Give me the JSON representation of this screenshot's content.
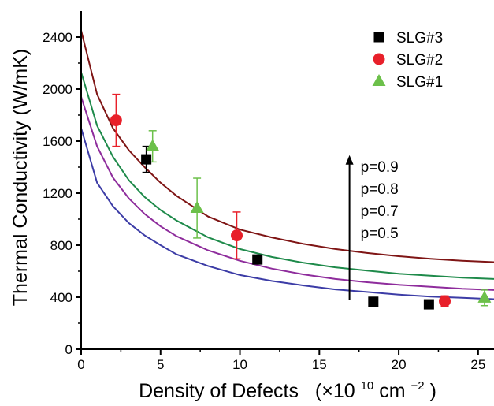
{
  "chart_data": {
    "type": "scatter",
    "xlabel": "Density of Defects",
    "xlabel_unit_prefix": "(×10",
    "xlabel_unit_exp": "10",
    "xlabel_unit_mid": " cm",
    "xlabel_unit_exp2": "−2",
    "xlabel_unit_suffix": ")",
    "ylabel": "Thermal Conductivity (W/mK)",
    "xlim": [
      0,
      26
    ],
    "ylim": [
      0,
      2600
    ],
    "xticks": [
      0,
      5,
      10,
      15,
      20,
      25
    ],
    "yticks": [
      0,
      400,
      800,
      1200,
      1600,
      2000,
      2400
    ],
    "grid": false,
    "legend_position": "top-right",
    "series": [
      {
        "name": "SLG#3",
        "marker": "square",
        "color": "#000000",
        "points": [
          {
            "x": 4.1,
            "y": 1460,
            "err": 100
          },
          {
            "x": 11.1,
            "y": 690,
            "err": 0
          },
          {
            "x": 18.4,
            "y": 365,
            "err": 0
          },
          {
            "x": 21.9,
            "y": 345,
            "err": 0
          }
        ]
      },
      {
        "name": "SLG#2",
        "marker": "circle",
        "color": "#e8202a",
        "points": [
          {
            "x": 2.2,
            "y": 1760,
            "err": 200
          },
          {
            "x": 9.8,
            "y": 875,
            "err": 180
          },
          {
            "x": 22.9,
            "y": 370,
            "err": 40
          }
        ]
      },
      {
        "name": "SLG#1",
        "marker": "triangle",
        "color": "#6cc04a",
        "points": [
          {
            "x": 4.5,
            "y": 1560,
            "err": 120
          },
          {
            "x": 7.3,
            "y": 1085,
            "err": 230
          },
          {
            "x": 25.4,
            "y": 395,
            "err": 60
          }
        ]
      }
    ],
    "curves": [
      {
        "label": "p=0.9",
        "color": "#7f1515",
        "x": [
          0,
          1,
          2,
          3,
          4,
          5,
          6,
          8,
          10,
          12,
          14,
          16,
          18,
          20,
          22,
          24,
          26
        ],
        "y": [
          2450,
          1960,
          1700,
          1530,
          1400,
          1280,
          1180,
          1020,
          920,
          860,
          810,
          770,
          740,
          715,
          695,
          680,
          670
        ]
      },
      {
        "label": "p=0.8",
        "color": "#1e8a4a",
        "x": [
          0,
          1,
          2,
          3,
          4,
          5,
          6,
          8,
          10,
          12,
          14,
          16,
          18,
          20,
          22,
          24,
          26
        ],
        "y": [
          2130,
          1720,
          1480,
          1300,
          1170,
          1070,
          990,
          860,
          770,
          710,
          665,
          630,
          605,
          580,
          565,
          550,
          540
        ]
      },
      {
        "label": "p=0.7",
        "color": "#8e2c9c",
        "x": [
          0,
          1,
          2,
          3,
          4,
          5,
          6,
          8,
          10,
          12,
          14,
          16,
          18,
          20,
          22,
          24,
          26
        ],
        "y": [
          1940,
          1560,
          1320,
          1160,
          1040,
          945,
          870,
          760,
          680,
          620,
          575,
          540,
          515,
          495,
          480,
          465,
          455
        ]
      },
      {
        "label": "p=0.5",
        "color": "#3c3ca6",
        "x": [
          0,
          1,
          2,
          3,
          4,
          5,
          6,
          8,
          10,
          12,
          14,
          16,
          18,
          20,
          22,
          24,
          26
        ],
        "y": [
          1700,
          1280,
          1100,
          970,
          875,
          800,
          730,
          640,
          570,
          525,
          490,
          460,
          440,
          420,
          405,
          395,
          385
        ]
      }
    ],
    "annotation": {
      "arrow": {
        "x": 16.9,
        "y_from": 380,
        "y_to": 1480
      },
      "labels": [
        "p=0.9",
        "p=0.8",
        "p=0.7",
        "p=0.5"
      ]
    }
  }
}
